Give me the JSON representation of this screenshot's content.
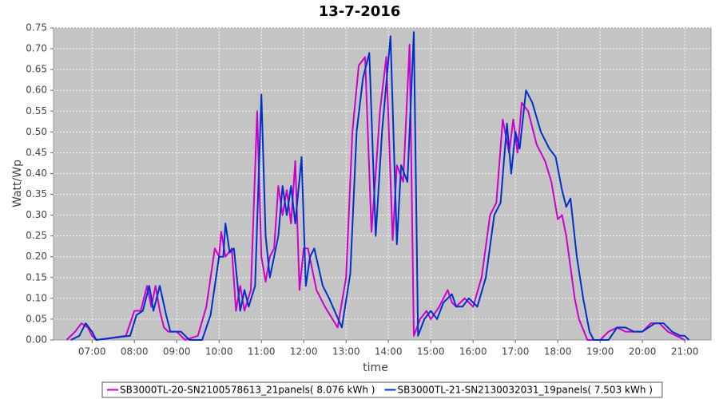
{
  "chart_data": {
    "type": "line",
    "title": "13-7-2016",
    "x_label": "time",
    "y_label": "Watt/Wp",
    "xlim": [
      6.09,
      21.62
    ],
    "xticks": [
      {
        "value": 7,
        "label": "07:00"
      },
      {
        "value": 8,
        "label": "08:00"
      },
      {
        "value": 9,
        "label": "09:00"
      },
      {
        "value": 10,
        "label": "10:00"
      },
      {
        "value": 11,
        "label": "11:00"
      },
      {
        "value": 12,
        "label": "12:00"
      },
      {
        "value": 13,
        "label": "13:00"
      },
      {
        "value": 14,
        "label": "14:00"
      },
      {
        "value": 15,
        "label": "15:00"
      },
      {
        "value": 16,
        "label": "16:00"
      },
      {
        "value": 17,
        "label": "17:00"
      },
      {
        "value": 18,
        "label": "18:00"
      },
      {
        "value": 19,
        "label": "19:00"
      },
      {
        "value": 20,
        "label": "20:00"
      },
      {
        "value": 21,
        "label": "21:00"
      }
    ],
    "ylim": [
      0,
      0.75
    ],
    "yticks": [
      {
        "value": 0,
        "label": "0.00"
      },
      0.05,
      {
        "value": 0.1,
        "label": "0.10"
      },
      0.15,
      {
        "value": 0.2,
        "label": "0.20"
      },
      0.25,
      {
        "value": 0.3,
        "label": "0.30"
      },
      0.35,
      {
        "value": 0.4,
        "label": "0.40"
      },
      0.45,
      {
        "value": 0.5,
        "label": "0.50"
      },
      0.55,
      {
        "value": 0.6,
        "label": "0.60"
      },
      0.65,
      {
        "value": 0.7,
        "label": "0.70"
      },
      0.75
    ],
    "grid": true,
    "legend": "bottom",
    "series": [
      {
        "name": "SB3000TL-20-SN2100578613_21panels( 8.076 kWh )",
        "color": "#cc00cc",
        "x": [
          6.4,
          6.6,
          6.75,
          6.9,
          7.0,
          7.1,
          7.8,
          8.0,
          8.15,
          8.3,
          8.4,
          8.5,
          8.6,
          8.7,
          8.8,
          9.0,
          9.2,
          9.5,
          9.7,
          9.9,
          10.0,
          10.05,
          10.15,
          10.3,
          10.4,
          10.5,
          10.6,
          10.75,
          10.9,
          11.0,
          11.1,
          11.2,
          11.3,
          11.4,
          11.5,
          11.6,
          11.7,
          11.8,
          11.9,
          12.0,
          12.1,
          12.3,
          12.5,
          12.8,
          13.0,
          13.15,
          13.3,
          13.45,
          13.6,
          13.7,
          13.8,
          13.95,
          14.1,
          14.2,
          14.35,
          14.5,
          14.6,
          14.75,
          14.9,
          15.0,
          15.2,
          15.4,
          15.5,
          15.6,
          15.8,
          16.0,
          16.2,
          16.4,
          16.55,
          16.7,
          16.85,
          16.95,
          17.05,
          17.15,
          17.3,
          17.5,
          17.7,
          17.85,
          18.0,
          18.1,
          18.2,
          18.4,
          18.5,
          18.7,
          19.0,
          19.2,
          19.4,
          19.6,
          19.8,
          20.0,
          20.2,
          20.4,
          20.6,
          20.8,
          21.0
        ],
        "values": [
          0,
          0.02,
          0.04,
          0.03,
          0.01,
          0,
          0.01,
          0.07,
          0.07,
          0.13,
          0.08,
          0.13,
          0.07,
          0.03,
          0.02,
          0.02,
          0,
          0.01,
          0.08,
          0.22,
          0.2,
          0.26,
          0.2,
          0.22,
          0.07,
          0.13,
          0.07,
          0.12,
          0.55,
          0.2,
          0.14,
          0.2,
          0.22,
          0.37,
          0.3,
          0.36,
          0.28,
          0.43,
          0.12,
          0.22,
          0.22,
          0.12,
          0.08,
          0.03,
          0.15,
          0.5,
          0.66,
          0.68,
          0.26,
          0.4,
          0.55,
          0.68,
          0.24,
          0.42,
          0.38,
          0.71,
          0.01,
          0.05,
          0.07,
          0.05,
          0.08,
          0.12,
          0.09,
          0.08,
          0.1,
          0.08,
          0.15,
          0.3,
          0.33,
          0.53,
          0.45,
          0.53,
          0.45,
          0.57,
          0.55,
          0.47,
          0.43,
          0.38,
          0.29,
          0.3,
          0.25,
          0.1,
          0.05,
          0,
          0,
          0.02,
          0.03,
          0.02,
          0.02,
          0.02,
          0.04,
          0.04,
          0.02,
          0.01,
          0
        ]
      },
      {
        "name": "SB3000TL-21-SN2130032031_19panels( 7.503 kWh )",
        "color": "#0030cc",
        "x": [
          6.5,
          6.7,
          6.85,
          7.0,
          7.1,
          7.9,
          8.05,
          8.2,
          8.35,
          8.45,
          8.6,
          8.75,
          8.85,
          9.1,
          9.3,
          9.6,
          9.8,
          10.0,
          10.1,
          10.15,
          10.25,
          10.35,
          10.5,
          10.6,
          10.7,
          10.85,
          11.0,
          11.1,
          11.2,
          11.3,
          11.4,
          11.5,
          11.6,
          11.7,
          11.8,
          11.95,
          12.05,
          12.15,
          12.25,
          12.45,
          12.6,
          12.9,
          13.1,
          13.25,
          13.4,
          13.55,
          13.7,
          13.85,
          14.05,
          14.2,
          14.3,
          14.45,
          14.6,
          14.7,
          14.85,
          15.0,
          15.15,
          15.3,
          15.5,
          15.6,
          15.75,
          15.9,
          16.1,
          16.3,
          16.5,
          16.65,
          16.8,
          16.9,
          17.0,
          17.1,
          17.25,
          17.4,
          17.6,
          17.8,
          17.95,
          18.1,
          18.2,
          18.3,
          18.45,
          18.6,
          18.75,
          18.85,
          19.2,
          19.4,
          19.6,
          19.8,
          20.0,
          20.3,
          20.5,
          20.7,
          20.9,
          21.0,
          21.1
        ],
        "values": [
          0,
          0.01,
          0.04,
          0.02,
          0,
          0.01,
          0.06,
          0.07,
          0.13,
          0.07,
          0.13,
          0.06,
          0.02,
          0.02,
          0,
          0,
          0.06,
          0.2,
          0.2,
          0.28,
          0.21,
          0.22,
          0.07,
          0.12,
          0.08,
          0.13,
          0.59,
          0.25,
          0.15,
          0.2,
          0.25,
          0.37,
          0.3,
          0.37,
          0.28,
          0.44,
          0.13,
          0.2,
          0.22,
          0.13,
          0.1,
          0.03,
          0.16,
          0.5,
          0.63,
          0.69,
          0.25,
          0.5,
          0.73,
          0.23,
          0.42,
          0.38,
          0.74,
          0.01,
          0.05,
          0.07,
          0.05,
          0.09,
          0.11,
          0.08,
          0.08,
          0.1,
          0.08,
          0.15,
          0.3,
          0.33,
          0.52,
          0.4,
          0.5,
          0.46,
          0.6,
          0.57,
          0.5,
          0.46,
          0.44,
          0.36,
          0.32,
          0.34,
          0.2,
          0.1,
          0.02,
          0,
          0,
          0.03,
          0.03,
          0.02,
          0.02,
          0.04,
          0.04,
          0.02,
          0.01,
          0.01,
          0
        ]
      }
    ]
  }
}
